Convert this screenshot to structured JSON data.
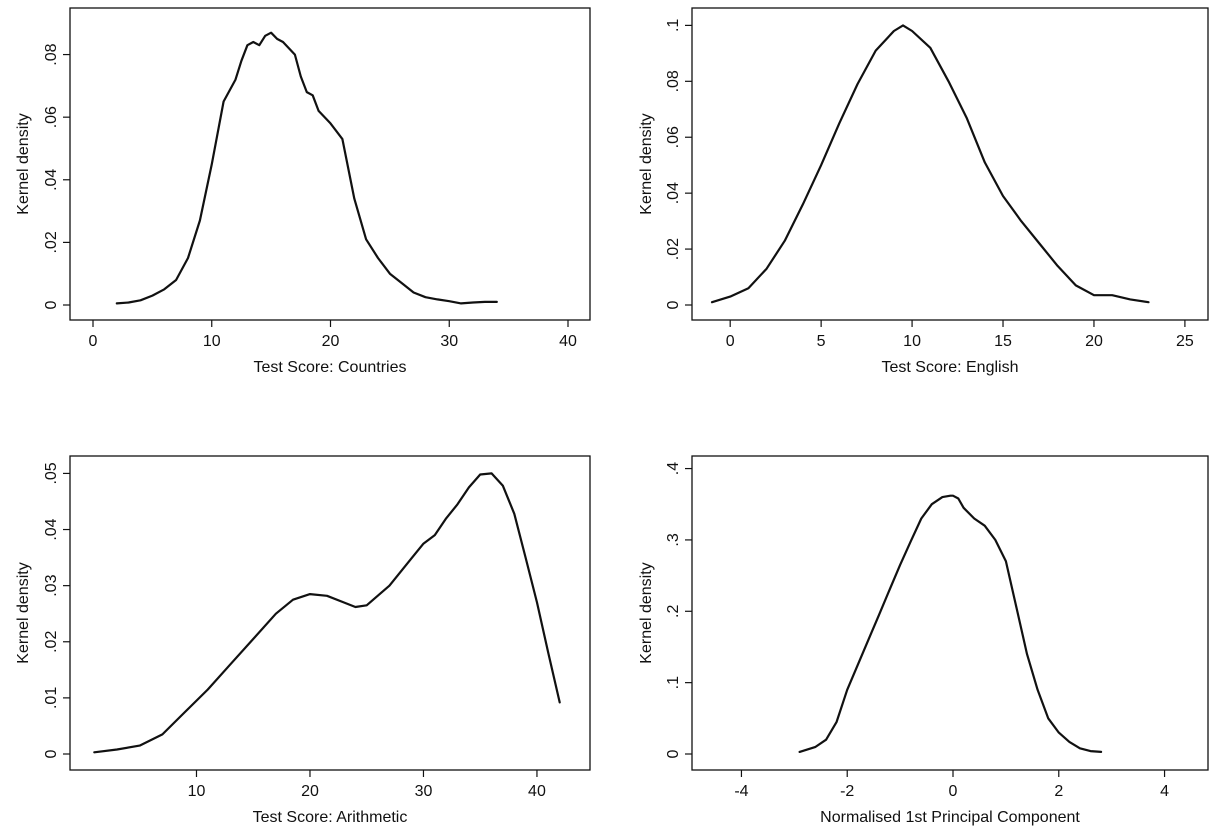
{
  "chart_data": [
    {
      "type": "line",
      "xlabel": "Test Score: Countries",
      "ylabel": "Kernel density",
      "xlim": [
        0,
        40
      ],
      "ylim": [
        0,
        0.092
      ],
      "xticks": [
        "0",
        "10",
        "20",
        "30",
        "40"
      ],
      "xtick_values": [
        0,
        10,
        20,
        30,
        40
      ],
      "yticks": [
        "0",
        ".02",
        ".04",
        ".06",
        ".08"
      ],
      "ytick_values": [
        0,
        0.02,
        0.04,
        0.06,
        0.08
      ],
      "grid": false,
      "series": [
        {
          "x": [
            2,
            3,
            4,
            5,
            6,
            7,
            8,
            9,
            10,
            11,
            12,
            12.5,
            13,
            13.5,
            14,
            14.5,
            15,
            15.5,
            16,
            17,
            17.5,
            18,
            18.5,
            19,
            20,
            21,
            22,
            23,
            24,
            25,
            26,
            27,
            28,
            29,
            30,
            31,
            32,
            33,
            34
          ],
          "y": [
            0.0005,
            0.0008,
            0.0015,
            0.003,
            0.005,
            0.008,
            0.015,
            0.027,
            0.045,
            0.065,
            0.072,
            0.078,
            0.083,
            0.084,
            0.083,
            0.086,
            0.087,
            0.085,
            0.084,
            0.08,
            0.073,
            0.068,
            0.067,
            0.062,
            0.058,
            0.053,
            0.034,
            0.021,
            0.015,
            0.01,
            0.007,
            0.004,
            0.0025,
            0.0018,
            0.0012,
            0.0005,
            0.0008,
            0.001,
            0.001
          ]
        }
      ]
    },
    {
      "type": "line",
      "xlabel": "Test Score: English",
      "ylabel": "Kernel density",
      "xlim": [
        -1,
        25.5
      ],
      "ylim": [
        0,
        0.103
      ],
      "xticks": [
        "0",
        "5",
        "10",
        "15",
        "20",
        "25"
      ],
      "xtick_values": [
        0,
        5,
        10,
        15,
        20,
        25
      ],
      "yticks": [
        "0",
        ".02",
        ".04",
        ".06",
        ".08",
        ".1"
      ],
      "ytick_values": [
        0,
        0.02,
        0.04,
        0.06,
        0.08,
        0.1
      ],
      "grid": false,
      "series": [
        {
          "x": [
            -1,
            0,
            1,
            2,
            3,
            4,
            5,
            6,
            7,
            8,
            9,
            9.5,
            10,
            11,
            12,
            13,
            14,
            15,
            16,
            17,
            18,
            19,
            20,
            21,
            22,
            23
          ],
          "y": [
            0.001,
            0.003,
            0.006,
            0.013,
            0.023,
            0.036,
            0.05,
            0.065,
            0.079,
            0.091,
            0.098,
            0.1,
            0.098,
            0.092,
            0.08,
            0.067,
            0.051,
            0.039,
            0.03,
            0.022,
            0.014,
            0.007,
            0.0035,
            0.0035,
            0.002,
            0.001
          ]
        }
      ]
    },
    {
      "type": "line",
      "xlabel": "Test Score: Arithmetic",
      "ylabel": "Kernel density",
      "xlim": [
        0,
        43
      ],
      "ylim": [
        0,
        0.0515
      ],
      "xticks": [
        "10",
        "20",
        "30",
        "40"
      ],
      "xtick_values": [
        10,
        20,
        30,
        40
      ],
      "yticks": [
        "0",
        ".01",
        ".02",
        ".03",
        ".04",
        ".05"
      ],
      "ytick_values": [
        0,
        0.01,
        0.02,
        0.03,
        0.04,
        0.05
      ],
      "grid": false,
      "series": [
        {
          "x": [
            1,
            3,
            5,
            7,
            9,
            11,
            13,
            15,
            17,
            18.5,
            20,
            21.5,
            23,
            24,
            25,
            27,
            29,
            30,
            31,
            32,
            33,
            34,
            35,
            36,
            37,
            38,
            39,
            40,
            41,
            42
          ],
          "y": [
            0.0003,
            0.0008,
            0.0015,
            0.0035,
            0.0075,
            0.0115,
            0.016,
            0.0205,
            0.025,
            0.0275,
            0.0285,
            0.0282,
            0.027,
            0.0262,
            0.0265,
            0.03,
            0.035,
            0.0375,
            0.039,
            0.042,
            0.0445,
            0.0475,
            0.0498,
            0.05,
            0.0478,
            0.0428,
            0.035,
            0.027,
            0.018,
            0.0092
          ]
        }
      ]
    },
    {
      "type": "line",
      "xlabel": "Normalised 1st Principal Component",
      "ylabel": "Kernel density",
      "xlim": [
        -4.5,
        4.5
      ],
      "ylim": [
        0,
        0.405
      ],
      "xticks": [
        "-4",
        "-2",
        "0",
        "2",
        "4"
      ],
      "xtick_values": [
        -4,
        -2,
        0,
        2,
        4
      ],
      "yticks": [
        "0",
        ".1",
        ".2",
        ".3",
        ".4"
      ],
      "ytick_values": [
        0,
        0.1,
        0.2,
        0.3,
        0.4
      ],
      "grid": false,
      "series": [
        {
          "x": [
            -2.9,
            -2.6,
            -2.4,
            -2.2,
            -2.0,
            -1.8,
            -1.6,
            -1.4,
            -1.2,
            -1.0,
            -0.8,
            -0.6,
            -0.4,
            -0.2,
            -0.05,
            0,
            0.1,
            0.2,
            0.4,
            0.6,
            0.8,
            1.0,
            1.2,
            1.4,
            1.6,
            1.8,
            2.0,
            2.2,
            2.4,
            2.6,
            2.8
          ],
          "y": [
            0.003,
            0.01,
            0.02,
            0.045,
            0.09,
            0.125,
            0.16,
            0.195,
            0.23,
            0.265,
            0.298,
            0.33,
            0.35,
            0.36,
            0.362,
            0.362,
            0.358,
            0.345,
            0.33,
            0.32,
            0.3,
            0.27,
            0.205,
            0.14,
            0.09,
            0.05,
            0.03,
            0.017,
            0.008,
            0.004,
            0.003
          ]
        }
      ]
    }
  ]
}
